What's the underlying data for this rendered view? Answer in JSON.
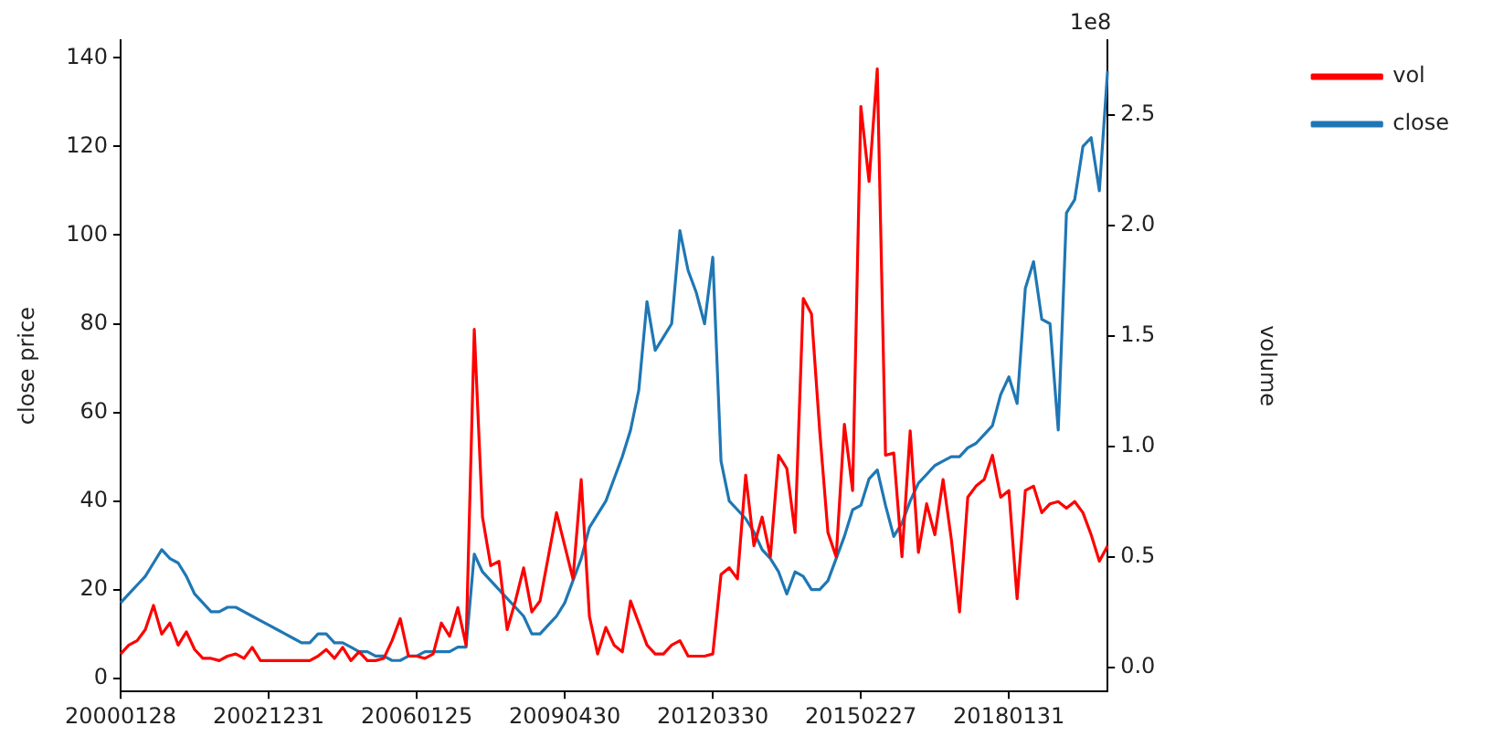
{
  "chart_data": {
    "type": "line",
    "ylabel": "close price",
    "y2label": "volume",
    "categories": [
      "20000128",
      null,
      null,
      null,
      null,
      null,
      null,
      null,
      null,
      null,
      null,
      null,
      null,
      null,
      null,
      null,
      null,
      null,
      "20021231",
      null,
      null,
      null,
      null,
      null,
      null,
      null,
      null,
      null,
      null,
      null,
      null,
      null,
      null,
      null,
      null,
      null,
      "20060125",
      null,
      null,
      null,
      null,
      null,
      null,
      null,
      null,
      null,
      null,
      null,
      null,
      null,
      null,
      null,
      null,
      null,
      "20090430",
      null,
      null,
      null,
      null,
      null,
      null,
      null,
      null,
      null,
      null,
      null,
      null,
      null,
      null,
      null,
      null,
      null,
      "20120330",
      null,
      null,
      null,
      null,
      null,
      null,
      null,
      null,
      null,
      null,
      null,
      null,
      null,
      null,
      null,
      null,
      null,
      "20150227",
      null,
      null,
      null,
      null,
      null,
      null,
      null,
      null,
      null,
      null,
      null,
      null,
      null,
      null,
      null,
      null,
      null,
      "20180131",
      null,
      null,
      null,
      null,
      null,
      null,
      null,
      null,
      null,
      null,
      null,
      null
    ],
    "series": [
      {
        "name": "vol",
        "color": "#ff0000",
        "axis": "y2",
        "values": [
          0.06,
          0.1,
          0.12,
          0.17,
          0.28,
          0.15,
          0.2,
          0.1,
          0.16,
          0.08,
          0.04,
          0.04,
          0.03,
          0.05,
          0.06,
          0.04,
          0.09,
          0.03,
          0.03,
          0.03,
          0.03,
          0.03,
          0.03,
          0.03,
          0.05,
          0.08,
          0.04,
          0.09,
          0.03,
          0.07,
          0.03,
          0.03,
          0.04,
          0.12,
          0.22,
          0.05,
          0.05,
          0.04,
          0.06,
          0.2,
          0.14,
          0.27,
          0.1,
          1.53,
          0.68,
          0.46,
          0.48,
          0.17,
          0.3,
          0.45,
          0.25,
          0.3,
          0.5,
          0.7,
          0.55,
          0.4,
          0.85,
          0.23,
          0.06,
          0.18,
          0.1,
          0.07,
          0.3,
          0.2,
          0.1,
          0.06,
          0.06,
          0.1,
          0.12,
          0.05,
          0.05,
          0.05,
          0.06,
          0.42,
          0.45,
          0.4,
          0.87,
          0.55,
          0.68,
          0.5,
          0.96,
          0.9,
          0.61,
          1.67,
          1.6,
          1.07,
          0.61,
          0.5,
          1.1,
          0.8,
          2.54,
          2.2,
          2.71,
          0.96,
          0.97,
          0.5,
          1.07,
          0.52,
          0.74,
          0.6,
          0.85,
          0.58,
          0.25,
          0.77,
          0.82,
          0.85,
          0.96,
          0.77,
          0.8,
          0.31,
          0.8,
          0.82,
          0.7,
          0.74,
          0.75,
          0.72,
          0.75,
          0.7,
          0.6,
          0.48,
          0.55
        ]
      },
      {
        "name": "close",
        "color": "#1f77b4",
        "values": [
          17,
          19,
          21,
          23,
          26,
          29,
          27,
          26,
          23,
          19,
          17,
          15,
          15,
          16,
          16,
          15,
          14,
          13,
          12,
          11,
          10,
          9,
          8,
          8,
          10,
          10,
          8,
          8,
          7,
          6,
          6,
          5,
          5,
          4,
          4,
          5,
          5,
          6,
          6,
          6,
          6,
          7,
          7,
          28,
          24,
          22,
          20,
          18,
          16,
          14,
          10,
          10,
          12,
          14,
          17,
          22,
          27,
          34,
          37,
          40,
          45,
          50,
          56,
          65,
          85,
          74,
          77,
          80,
          101,
          92,
          87,
          80,
          95,
          49,
          40,
          38,
          36,
          33,
          29,
          27,
          24,
          19,
          24,
          23,
          20,
          20,
          22,
          27,
          32,
          38,
          39,
          45,
          47,
          39,
          32,
          35,
          40,
          44,
          46,
          48,
          49,
          50,
          50,
          52,
          53,
          55,
          57,
          64,
          68,
          62,
          88,
          94,
          81,
          80,
          56,
          105,
          108,
          120,
          122,
          110,
          137
        ]
      }
    ],
    "ylim": [
      -3,
      144
    ],
    "yticks": [
      0,
      20,
      40,
      60,
      80,
      100,
      120,
      140
    ],
    "y2lim": [
      -0.11,
      2.84
    ],
    "y2ticks": [
      {
        "value": 0,
        "label": "0.0"
      },
      0.5,
      {
        "value": 1,
        "label": "1.0"
      },
      1.5,
      {
        "value": 2,
        "label": "2.0"
      },
      2.5
    ],
    "annotations": [
      "1e8"
    ],
    "legend": "right",
    "grid": false,
    "marker": "none",
    "line_style": "solid"
  }
}
